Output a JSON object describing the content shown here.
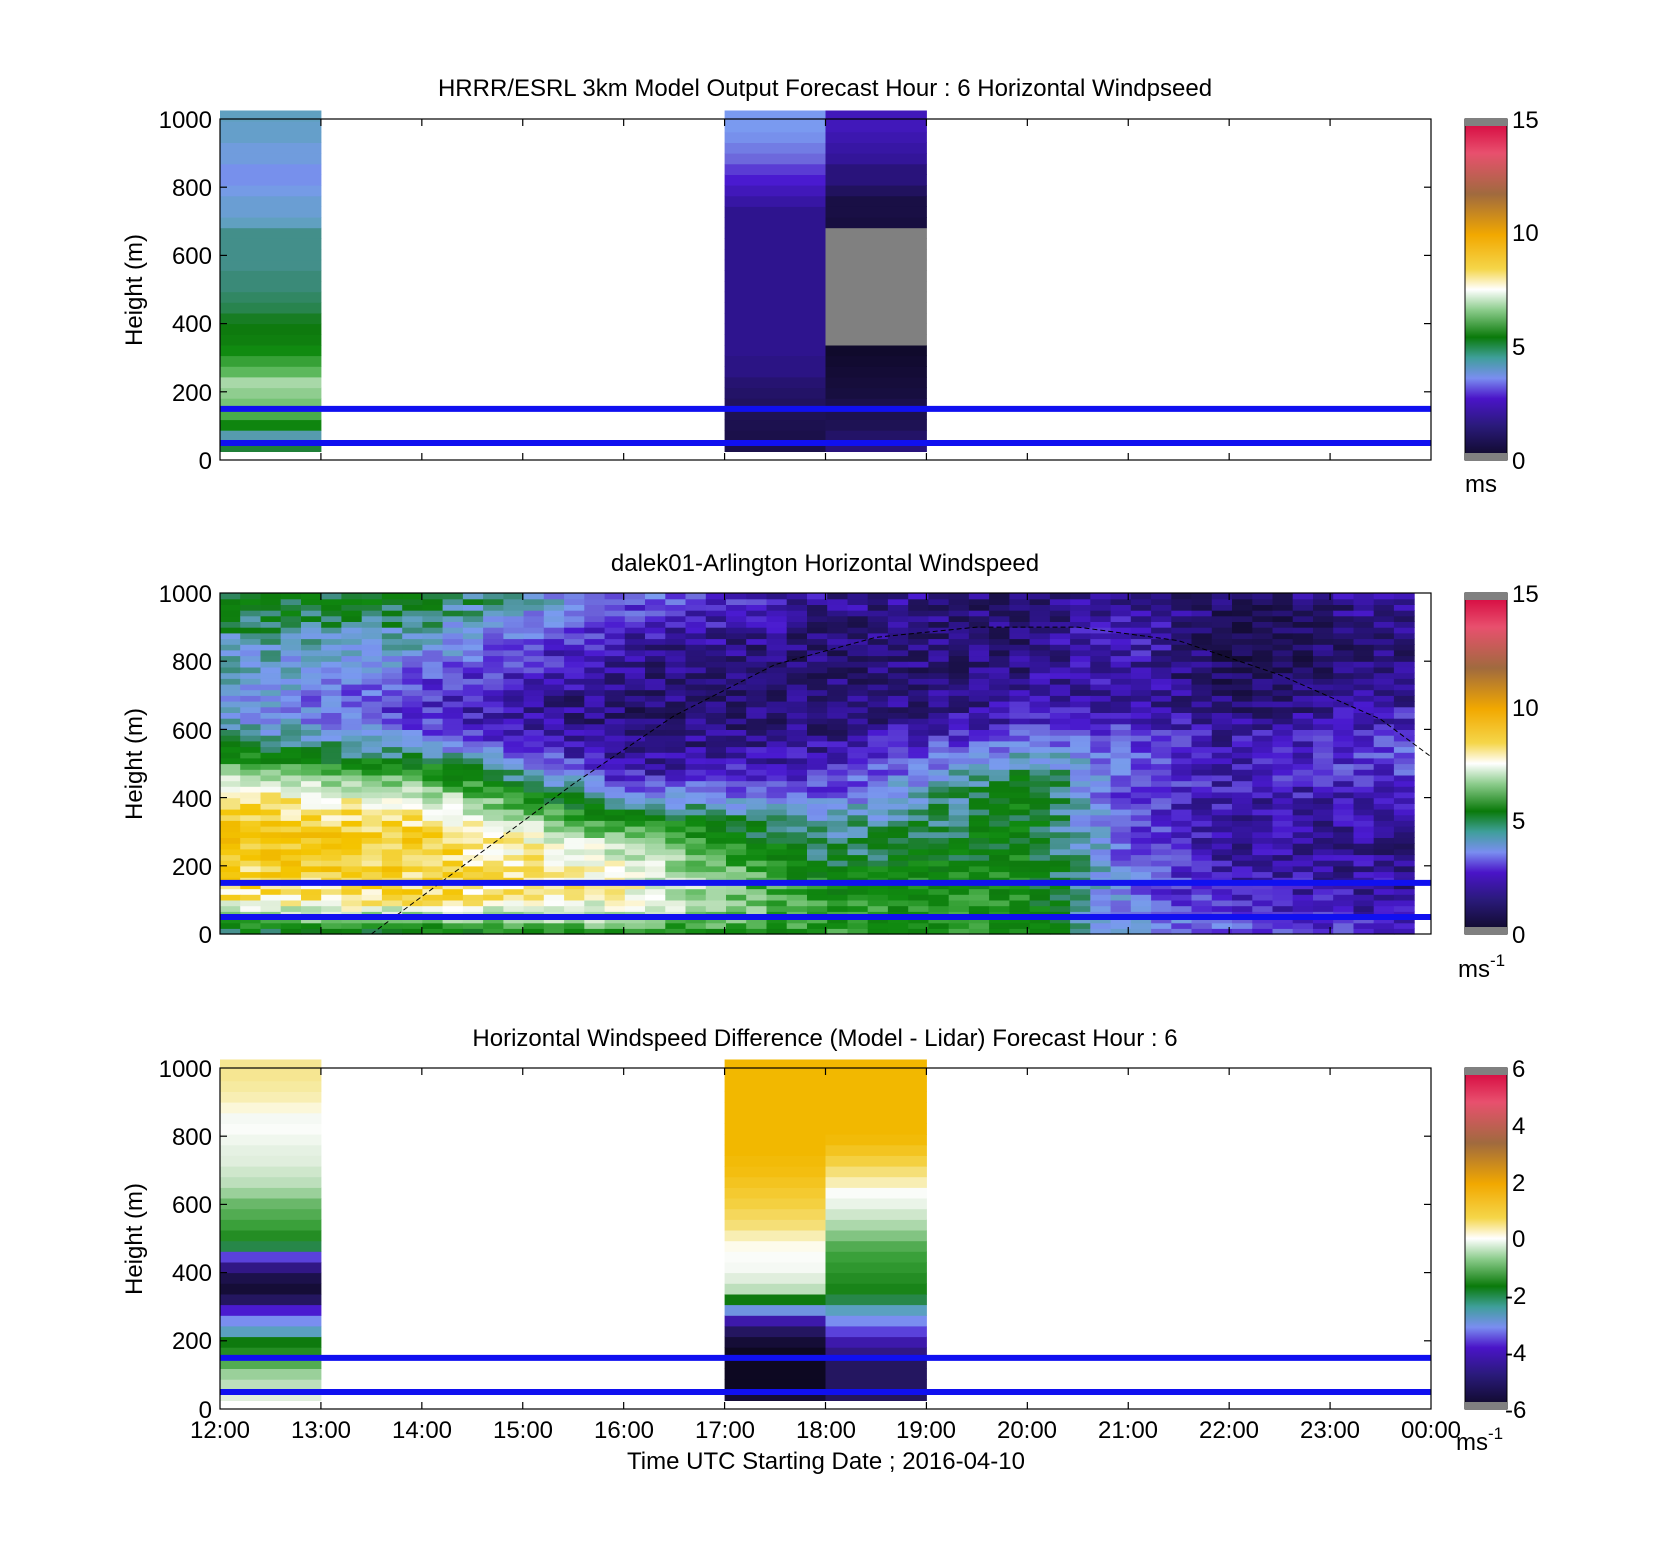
{
  "figure": {
    "xaxis": {
      "label": "Time UTC  Starting Date ; 2016-04-10",
      "ticks": [
        "12:00",
        "13:00",
        "14:00",
        "15:00",
        "16:00",
        "17:00",
        "18:00",
        "19:00",
        "20:00",
        "21:00",
        "22:00",
        "23:00",
        "00:00"
      ]
    },
    "reference_lines_m": [
      50,
      150
    ],
    "reference_line_color": "#1010f0"
  },
  "chart_data": [
    {
      "type": "heatmap",
      "title": "HRRR/ESRL 3km Model Output   Forecast Hour : 6 Horizontal Windpseed",
      "ylabel": "Height (m)",
      "yticks": [
        "1000",
        "800",
        "600",
        "400",
        "200",
        "0"
      ],
      "ylim": [
        0,
        1000
      ],
      "colorbar": {
        "ticks": [
          "15",
          "10",
          "5",
          "0"
        ],
        "range": [
          0,
          15
        ],
        "unit": "ms",
        "unit_sup": ""
      },
      "columns": [
        {
          "time_start": "12:00",
          "time_end": "13:00",
          "values": [
            4.6,
            4.0,
            5.2,
            6.0,
            6.4,
            6.6,
            6.8,
            6.2,
            5.8,
            5.4,
            5.0,
            4.8,
            4.7,
            4.5,
            4.4,
            4.3,
            4.3,
            4.2,
            4.2,
            4.2,
            4.2,
            3.9,
            3.7,
            3.7,
            3.5,
            3.3,
            3.3,
            3.6,
            3.6,
            3.8,
            3.8,
            3.9
          ]
        },
        {
          "time_start": "17:00",
          "time_end": "18:00",
          "values": [
            0.8,
            0.8,
            0.9,
            1.0,
            1.1,
            1.2,
            1.3,
            1.5,
            1.5,
            1.6,
            1.6,
            1.6,
            1.6,
            1.6,
            1.6,
            1.6,
            1.6,
            1.6,
            1.6,
            1.6,
            1.6,
            1.6,
            1.6,
            1.8,
            2.0,
            2.2,
            2.5,
            2.9,
            3.1,
            3.3,
            3.4,
            3.4
          ]
        },
        {
          "time_start": "18:00",
          "time_end": "19:00",
          "values": [
            1.4,
            1.2,
            1.0,
            0.9,
            0.8,
            0.6,
            0.5,
            0.4,
            0.3,
            0.2,
            -1,
            -1,
            -1,
            -1,
            -1,
            -1,
            -1,
            -1,
            -1,
            -1,
            -1,
            0.6,
            0.7,
            0.7,
            1.1,
            1.4,
            1.4,
            1.7,
            1.8,
            1.9,
            2.0,
            2.0
          ]
        }
      ]
    },
    {
      "type": "heatmap",
      "title": "dalek01-Arlington  Horizontal Windspeed",
      "ylabel": "Height (m)",
      "yticks": [
        "1000",
        "800",
        "600",
        "400",
        "200",
        "0"
      ],
      "ylim": [
        0,
        1000
      ],
      "colorbar": {
        "ticks": [
          "15",
          "10",
          "5",
          "0"
        ],
        "range": [
          0,
          15
        ],
        "unit": "ms",
        "unit_sup": "-1"
      },
      "time_range": [
        "12:00",
        "23:50"
      ],
      "approx_profiles": {
        "12:00": [
          4.5,
          6.5,
          8.2,
          8.5,
          8.8,
          9.0,
          9.0,
          8.6,
          8.0,
          6.5,
          5.2,
          4.5,
          3.8,
          3.5,
          4.0,
          4.2,
          3.8,
          4.4,
          4.8,
          5.0
        ],
        "14:00": [
          4.6,
          6.8,
          8.5,
          8.6,
          8.7,
          8.8,
          8.5,
          8.0,
          7.0,
          5.8,
          4.2,
          3.0,
          2.4,
          2.3,
          2.6,
          3.0,
          3.6,
          4.0,
          4.5,
          4.8
        ],
        "16:00": [
          5.2,
          7.2,
          7.6,
          7.8,
          7.6,
          7.0,
          5.8,
          4.5,
          3.0,
          2.1,
          1.6,
          1.4,
          1.2,
          1.3,
          1.4,
          1.6,
          1.8,
          2.2,
          2.6,
          3.0
        ],
        "18:00": [
          5.6,
          5.7,
          5.5,
          5.2,
          4.7,
          4.3,
          3.9,
          3.4,
          2.7,
          2.2,
          1.9,
          1.6,
          1.4,
          1.3,
          1.2,
          1.2,
          1.3,
          1.4,
          1.6,
          1.8
        ],
        "20:00": [
          5.2,
          5.4,
          5.4,
          5.3,
          5.2,
          5.1,
          5.0,
          5.0,
          4.9,
          4.6,
          3.8,
          2.8,
          2.0,
          1.8,
          1.6,
          1.5,
          1.4,
          1.3,
          1.2,
          1.4
        ],
        "21:00": [
          3.4,
          3.2,
          3.0,
          3.0,
          2.9,
          2.8,
          2.7,
          2.6,
          2.6,
          2.7,
          2.9,
          2.6,
          2.3,
          2.0,
          1.9,
          2.0,
          2.2,
          2.4,
          2.1,
          1.6
        ],
        "22:00": [
          2.8,
          2.6,
          2.2,
          2.0,
          1.9,
          1.8,
          1.8,
          1.9,
          2.0,
          2.1,
          2.0,
          1.8,
          1.5,
          1.2,
          1.0,
          0.9,
          0.8,
          0.8,
          0.9,
          1.2
        ],
        "23:50": [
          2.2,
          2.0,
          1.8,
          1.7,
          1.6,
          1.6,
          1.7,
          1.8,
          2.1,
          2.5,
          2.8,
          2.6,
          2.2,
          1.9,
          1.6,
          1.5,
          1.5,
          1.6,
          1.8,
          2.0
        ]
      },
      "overlay_curve": {
        "description_hidden": true,
        "points": [
          [
            "13:30",
            0
          ],
          [
            "14:30",
            220
          ],
          [
            "15:30",
            440
          ],
          [
            "16:30",
            640
          ],
          [
            "17:30",
            790
          ],
          [
            "18:30",
            870
          ],
          [
            "19:30",
            900
          ],
          [
            "20:30",
            900
          ],
          [
            "21:30",
            860
          ],
          [
            "22:30",
            760
          ],
          [
            "23:30",
            630
          ],
          [
            "00:00",
            520
          ]
        ]
      }
    },
    {
      "type": "heatmap",
      "title": "Horizontal Windspeed Difference (Model - Lidar) Forecast Hour : 6",
      "ylabel": "Height (m)",
      "yticks": [
        "1000",
        "800",
        "600",
        "400",
        "200",
        "0"
      ],
      "ylim": [
        0,
        1000
      ],
      "colorbar": {
        "ticks": [
          "6",
          "4",
          "2",
          "0",
          "-2",
          "-4",
          "-6"
        ],
        "range": [
          -6,
          6
        ],
        "unit": "ms",
        "unit_sup": "-1"
      },
      "columns": [
        {
          "time_start": "12:00",
          "time_end": "13:00",
          "values": [
            -0.6,
            -1.0,
            -1.4,
            -2.0,
            -2.6,
            -3.0,
            -3.6,
            -4.2,
            -4.8,
            -5.4,
            -5.8,
            -5.6,
            -5.2,
            -4.6,
            -3.2,
            -2.6,
            -2.2,
            -2.0,
            -1.8,
            -1.4,
            -1.0,
            -0.8,
            -0.6,
            -0.5,
            -0.3,
            -0.1,
            -0.2,
            0.2,
            0.4,
            0.5,
            0.6,
            0.6
          ]
        },
        {
          "time_start": "17:00",
          "time_end": "18:00",
          "values": [
            -5.8,
            -6.6,
            -6.6,
            -6.6,
            -6.6,
            -5.8,
            -5.4,
            -5.0,
            -4.0,
            -3.0,
            -1.0,
            -0.6,
            -0.2,
            -0.1,
            0.1,
            0.4,
            0.8,
            1.0,
            1.2,
            1.4,
            1.6,
            1.8,
            1.9,
            2.0,
            2.0,
            2.0,
            2.0,
            2.0,
            2.0,
            2.0,
            2.0,
            2.0
          ]
        },
        {
          "time_start": "18:00",
          "time_end": "19:00",
          "values": [
            -5.4,
            -5.4,
            -5.4,
            -5.4,
            -5.2,
            -5.0,
            -4.6,
            -4.2,
            -3.6,
            -3.2,
            -2.8,
            -2.6,
            -2.4,
            -2.2,
            -2.0,
            -1.6,
            -1.2,
            -0.8,
            -0.4,
            -0.1,
            0.4,
            0.8,
            1.2,
            1.6,
            1.9,
            2.0,
            2.0,
            2.0,
            2.0,
            2.0,
            2.0,
            2.0
          ]
        }
      ]
    }
  ]
}
